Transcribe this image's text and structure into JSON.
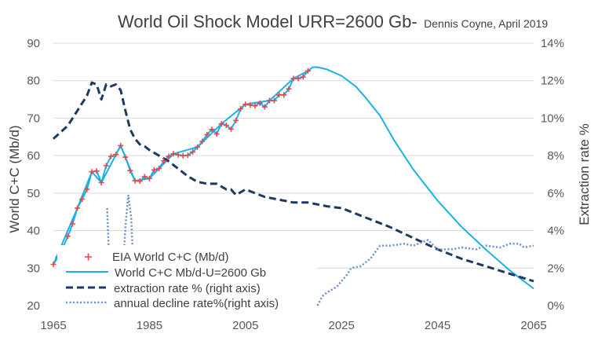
{
  "chart_data": {
    "type": "line",
    "title": "World Oil Shock Model URR=2600 Gb-",
    "subtitle": "Dennis Coyne, April 2019",
    "ylabel": "World C+C (Mb/d)",
    "y2label": "Extraction rate %",
    "xlim": [
      1965,
      2065
    ],
    "ylim": [
      20,
      90
    ],
    "y2lim": [
      0,
      14
    ],
    "x_ticks": [
      1965,
      1985,
      2005,
      2025,
      2045,
      2065
    ],
    "x_tick_labels": [
      "1965",
      "1985",
      "2005",
      "2025",
      "2045",
      "2065"
    ],
    "y_ticks": [
      20,
      30,
      40,
      50,
      60,
      70,
      80,
      90
    ],
    "y_tick_labels": [
      "20",
      "30",
      "40",
      "50",
      "60",
      "70",
      "80",
      "90"
    ],
    "y2_ticks": [
      0,
      2,
      4,
      6,
      8,
      10,
      12,
      14
    ],
    "y2_tick_labels": [
      "0%",
      "2%",
      "4%",
      "6%",
      "8%",
      "10%",
      "12%",
      "14%"
    ],
    "gridlines": "horizontal",
    "legend_position": "bottom-left",
    "series": [
      {
        "name": "EIA World C+C (Mb/d)",
        "axis": "left",
        "color": "#e8474a",
        "marker": "plus",
        "x": [
          1965,
          1966,
          1967,
          1968,
          1969,
          1970,
          1971,
          1972,
          1973,
          1974,
          1975,
          1976,
          1977,
          1978,
          1979,
          1980,
          1981,
          1982,
          1983,
          1984,
          1985,
          1986,
          1987,
          1988,
          1989,
          1990,
          1991,
          1992,
          1993,
          1994,
          1995,
          1996,
          1997,
          1998,
          1999,
          2000,
          2001,
          2002,
          2003,
          2004,
          2005,
          2006,
          2007,
          2008,
          2009,
          2010,
          2011,
          2012,
          2013,
          2014,
          2015,
          2016,
          2017,
          2018
        ],
        "y": [
          31.0,
          33.0,
          35.5,
          38.5,
          41.8,
          46.0,
          48.4,
          51.0,
          55.7,
          55.9,
          52.8,
          57.3,
          59.8,
          60.3,
          62.7,
          59.6,
          56.0,
          53.3,
          53.2,
          54.4,
          53.9,
          56.2,
          56.6,
          58.6,
          59.8,
          60.5,
          60.2,
          60.0,
          60.1,
          61.0,
          62.3,
          63.8,
          65.6,
          67.0,
          65.8,
          68.5,
          68.1,
          67.1,
          69.4,
          72.5,
          73.7,
          73.5,
          73.3,
          74.0,
          73.0,
          74.7,
          74.7,
          76.2,
          76.2,
          77.8,
          80.6,
          80.6,
          81.0,
          82.6
        ]
      },
      {
        "name": "World C+C Mb/d-U=2600 Gb",
        "axis": "left",
        "color": "#1ab0e8",
        "x": [
          1965,
          1970,
          1973,
          1975,
          1979,
          1982,
          1985,
          1990,
          1995,
          2000,
          2005,
          2010,
          2015,
          2018,
          2019,
          2020,
          2022,
          2025,
          2028,
          2030,
          2033,
          2036,
          2040,
          2045,
          2050,
          2055,
          2060,
          2065
        ],
        "y": [
          31.0,
          46.0,
          55.7,
          52.8,
          62.7,
          53.3,
          53.9,
          60.5,
          62.3,
          68.5,
          73.7,
          74.7,
          80.6,
          82.6,
          83.6,
          83.6,
          83.0,
          81.3,
          78.4,
          75.5,
          70.7,
          64.0,
          56.2,
          48.0,
          41.0,
          35.0,
          29.4,
          24.5
        ]
      },
      {
        "name": "extraction rate % (right axis)",
        "axis": "right",
        "color": "#203864",
        "dash": "dashed",
        "x": [
          1965,
          1968,
          1970,
          1971,
          1972,
          1973,
          1974,
          1975,
          1976,
          1977,
          1978,
          1979,
          1980,
          1981,
          1982,
          1983,
          1984,
          1985,
          1987,
          1989,
          1991,
          1993,
          1995,
          1997,
          1999,
          2001,
          2002,
          2003,
          2005,
          2007,
          2009,
          2011,
          2013,
          2015,
          2018,
          2022,
          2025,
          2030,
          2035,
          2040,
          2045,
          2050,
          2055,
          2060,
          2065
        ],
        "y": [
          8.9,
          9.6,
          10.4,
          10.8,
          11.2,
          11.9,
          11.8,
          11.0,
          11.8,
          11.7,
          11.8,
          11.5,
          10.4,
          9.4,
          8.9,
          8.6,
          8.5,
          8.3,
          8.0,
          7.7,
          7.3,
          6.9,
          6.6,
          6.5,
          6.5,
          6.2,
          6.2,
          5.9,
          6.2,
          6.0,
          5.8,
          5.7,
          5.6,
          5.5,
          5.5,
          5.3,
          5.2,
          4.7,
          4.2,
          3.6,
          3.0,
          2.5,
          2.1,
          1.7,
          1.3
        ]
      },
      {
        "name": "annual decline rate%(right axis)",
        "axis": "right",
        "color": "#6b8fc6",
        "dash": "dotted",
        "segments": [
          {
            "x": [
              1976.2,
              1976.4,
              1976.6,
              1976.8
            ],
            "y": [
              5.2,
              3.8,
              2.5,
              1.2
            ]
          },
          {
            "x": [
              1979.4,
              1980.0,
              1980.6,
              1981.2,
              1981.6
            ],
            "y": [
              1.5,
              4.2,
              5.9,
              4.7,
              2.5
            ]
          },
          {
            "x": [
              2020,
              2021,
              2022,
              2024,
              2026,
              2027,
              2029,
              2031,
              2033,
              2035,
              2038,
              2040,
              2043,
              2045,
              2048,
              2050,
              2053,
              2055,
              2058,
              2060,
              2062,
              2063,
              2065
            ],
            "y": [
              0.0,
              0.5,
              0.7,
              1.0,
              1.6,
              2.0,
              2.1,
              2.5,
              3.2,
              3.2,
              3.3,
              3.2,
              3.5,
              3.0,
              3.0,
              3.1,
              3.0,
              3.2,
              3.1,
              3.3,
              3.3,
              3.1,
              3.2
            ]
          }
        ]
      }
    ]
  }
}
